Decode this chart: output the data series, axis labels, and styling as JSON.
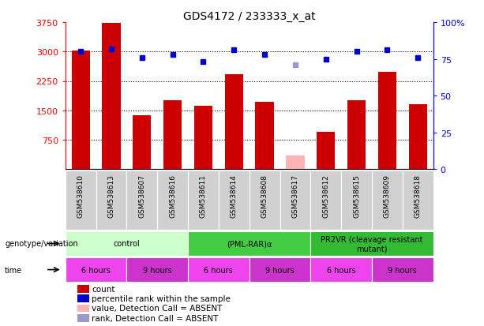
{
  "title": "GDS4172 / 233333_x_at",
  "samples": [
    "GSM538610",
    "GSM538613",
    "GSM538607",
    "GSM538616",
    "GSM538611",
    "GSM538614",
    "GSM538608",
    "GSM538617",
    "GSM538612",
    "GSM538615",
    "GSM538609",
    "GSM538618"
  ],
  "counts": [
    3020,
    3720,
    1380,
    1750,
    1620,
    2420,
    1710,
    350,
    950,
    1760,
    2490,
    1650
  ],
  "ranks": [
    80,
    82,
    76,
    78,
    73,
    81,
    78,
    71,
    75,
    80,
    81,
    76
  ],
  "absent_flags": [
    false,
    false,
    false,
    false,
    false,
    false,
    false,
    true,
    false,
    false,
    false,
    false
  ],
  "absent_rank_flags": [
    false,
    false,
    false,
    false,
    false,
    false,
    false,
    true,
    false,
    false,
    false,
    false
  ],
  "ylim_left": [
    0,
    3750
  ],
  "ylim_right": [
    0,
    100
  ],
  "yticks_left": [
    750,
    1500,
    2250,
    3000,
    3750
  ],
  "yticks_right": [
    0,
    25,
    50,
    75,
    100
  ],
  "bar_color": "#cc0000",
  "bar_color_absent": "#ffb3b3",
  "rank_color": "#0000cc",
  "rank_color_absent": "#9999cc",
  "genotype_groups": [
    {
      "label": "control",
      "start": 0,
      "end": 4,
      "color": "#ccffcc"
    },
    {
      "label": "(PML-RAR)α",
      "start": 4,
      "end": 8,
      "color": "#44cc44"
    },
    {
      "label": "PR2VR (cleavage resistant\nmutant)",
      "start": 8,
      "end": 12,
      "color": "#33bb33"
    }
  ],
  "time_groups": [
    {
      "label": "6 hours",
      "start": 0,
      "end": 2,
      "color": "#ee44ee"
    },
    {
      "label": "9 hours",
      "start": 2,
      "end": 4,
      "color": "#cc33cc"
    },
    {
      "label": "6 hours",
      "start": 4,
      "end": 6,
      "color": "#ee44ee"
    },
    {
      "label": "9 hours",
      "start": 6,
      "end": 8,
      "color": "#cc33cc"
    },
    {
      "label": "6 hours",
      "start": 8,
      "end": 10,
      "color": "#ee44ee"
    },
    {
      "label": "9 hours",
      "start": 10,
      "end": 12,
      "color": "#cc33cc"
    }
  ],
  "legend_items": [
    {
      "label": "count",
      "color": "#cc0000"
    },
    {
      "label": "percentile rank within the sample",
      "color": "#0000cc"
    },
    {
      "label": "value, Detection Call = ABSENT",
      "color": "#ffb3b3"
    },
    {
      "label": "rank, Detection Call = ABSENT",
      "color": "#9999cc"
    }
  ]
}
